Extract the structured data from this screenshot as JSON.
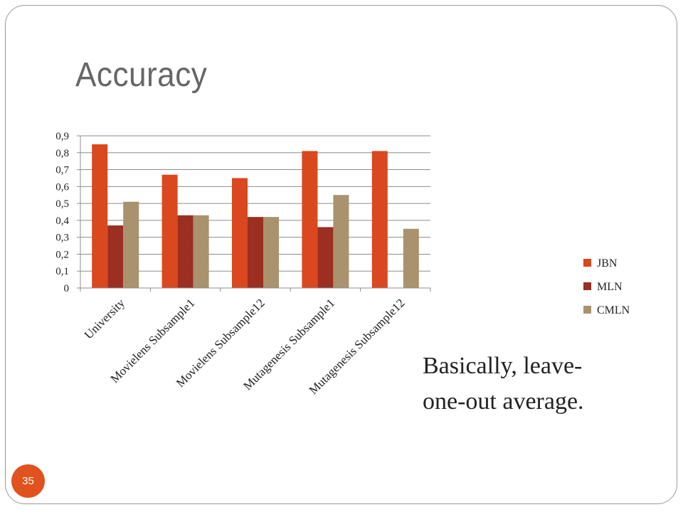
{
  "slide": {
    "title": "Accuracy",
    "note": "Basically, leave-one-out average.",
    "slide_number": "35"
  },
  "colors": {
    "accent": "#e0531f",
    "title_text": "#666666",
    "gridline": "#8c8c8c"
  },
  "chart_data": {
    "type": "bar",
    "title": "",
    "xlabel": "",
    "ylabel": "",
    "categories": [
      "University",
      "Movielens Subsample1",
      "Movielens Subsample12",
      "Mutagenesis Subsample1",
      "Mutagenesis Subsample12"
    ],
    "series": [
      {
        "name": "JBN",
        "color": "#d9481e",
        "values": [
          0.85,
          0.67,
          0.65,
          0.81,
          0.81
        ]
      },
      {
        "name": "MLN",
        "color": "#9b2f21",
        "values": [
          0.37,
          0.43,
          0.42,
          0.36,
          null
        ]
      },
      {
        "name": "CMLN",
        "color": "#a8936e",
        "values": [
          0.51,
          0.43,
          0.42,
          0.55,
          0.35
        ]
      }
    ],
    "ylim": [
      0,
      0.9
    ],
    "yticks": [
      0,
      0.1,
      0.2,
      0.3,
      0.4,
      0.5,
      0.6,
      0.7,
      0.8,
      0.9
    ],
    "ytick_labels": [
      "0",
      "0,1",
      "0,2",
      "0,3",
      "0,4",
      "0,5",
      "0,6",
      "0,7",
      "0,8",
      "0,9"
    ],
    "grid": true,
    "legend": "right"
  }
}
